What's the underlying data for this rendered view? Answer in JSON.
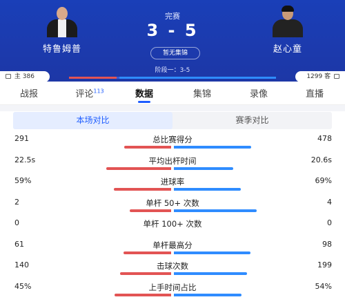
{
  "match": {
    "status": "完赛",
    "score": "3 - 5",
    "highlight_label": "暂无集锦",
    "stage": "阶段一：3-5",
    "home": {
      "name": "特鲁姆普",
      "support_label": "主",
      "support_count": "386"
    },
    "away": {
      "name": "赵心童",
      "support_label": "客",
      "support_count": "1299"
    },
    "colors": {
      "home": "#e25454",
      "away": "#2f8cff",
      "header": "#1d37a6",
      "accent": "#1d5cff"
    }
  },
  "tabs": [
    {
      "label": "战报",
      "badge": ""
    },
    {
      "label": "评论",
      "badge": "113"
    },
    {
      "label": "数据",
      "badge": "",
      "active": true
    },
    {
      "label": "集锦",
      "badge": ""
    },
    {
      "label": "录像",
      "badge": ""
    },
    {
      "label": "直播",
      "badge": ""
    }
  ],
  "segment": {
    "active": "本场对比",
    "inactive": "赛季对比"
  },
  "stats": [
    {
      "label": "总比赛得分",
      "left": "291",
      "right": "478",
      "left_value": 291,
      "right_value": 478
    },
    {
      "label": "平均出杆时间",
      "left": "22.5s",
      "right": "20.6s",
      "left_value": 22.5,
      "right_value": 20.6
    },
    {
      "label": "进球率",
      "left": "59%",
      "right": "69%",
      "left_value": 59,
      "right_value": 69
    },
    {
      "label": "单杆 50+ 次数",
      "left": "2",
      "right": "4",
      "left_value": 2,
      "right_value": 4
    },
    {
      "label": "单杆 100+ 次数",
      "left": "0",
      "right": "0",
      "left_value": 0,
      "right_value": 0
    },
    {
      "label": "单杆最高分",
      "left": "61",
      "right": "98",
      "left_value": 61,
      "right_value": 98
    },
    {
      "label": "击球次数",
      "left": "140",
      "right": "199",
      "left_value": 140,
      "right_value": 199
    },
    {
      "label": "上手时间占比",
      "left": "45%",
      "right": "54%",
      "left_value": 45,
      "right_value": 54
    }
  ]
}
